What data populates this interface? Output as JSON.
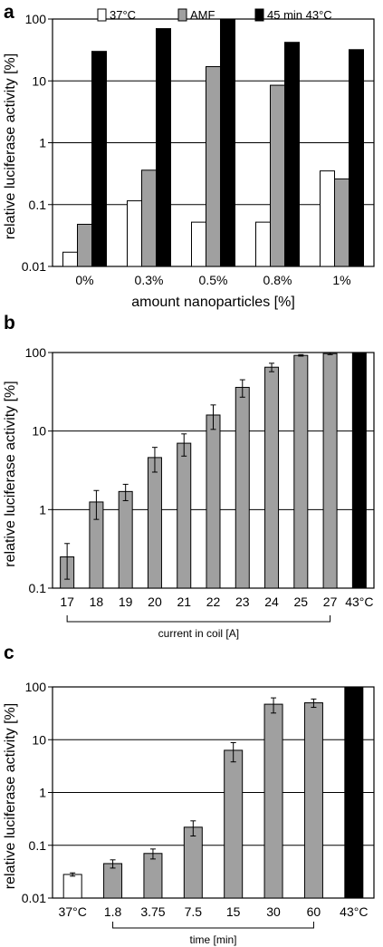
{
  "chart_data": [
    {
      "panel": "a",
      "type": "bar",
      "categories": [
        "0%",
        "0.3%",
        "0.5%",
        "0.8%",
        "1%"
      ],
      "series": [
        {
          "name": "37°C",
          "color": "#ffffff",
          "values": [
            0.017,
            0.115,
            0.052,
            0.052,
            0.35
          ]
        },
        {
          "name": "AMF",
          "color": "#a0a0a0",
          "values": [
            0.048,
            0.36,
            17,
            8.5,
            0.26
          ]
        },
        {
          "name": "45 min 43°C",
          "color": "#000000",
          "values": [
            30,
            70,
            100,
            42,
            32
          ]
        }
      ],
      "ylabel": "relative luciferase activity [%]",
      "xlabel": "amount nanoparticles [%]",
      "yscale": "log",
      "ylim": [
        0.01,
        100
      ],
      "yticks": [
        "0.01",
        "0.1",
        "1",
        "10",
        "100"
      ],
      "legend_position": "top"
    },
    {
      "panel": "b",
      "type": "bar",
      "categories": [
        "17",
        "18",
        "19",
        "20",
        "21",
        "22",
        "23",
        "24",
        "25",
        "27",
        "43°C"
      ],
      "values": [
        0.25,
        1.25,
        1.7,
        4.6,
        7,
        16,
        36,
        65,
        92,
        97,
        100
      ],
      "errors": [
        0.12,
        0.5,
        0.4,
        1.6,
        2.2,
        5.5,
        9,
        8,
        2,
        3,
        0
      ],
      "colors": [
        "#a0a0a0",
        "#a0a0a0",
        "#a0a0a0",
        "#a0a0a0",
        "#a0a0a0",
        "#a0a0a0",
        "#a0a0a0",
        "#a0a0a0",
        "#a0a0a0",
        "#a0a0a0",
        "#000000"
      ],
      "ylabel": "relative luciferase activity [%]",
      "xlabel": "current in coil [A]",
      "yscale": "log",
      "ylim": [
        0.1,
        100
      ],
      "yticks": [
        "0.1",
        "1",
        "10",
        "100"
      ]
    },
    {
      "panel": "c",
      "type": "bar",
      "categories": [
        "37°C",
        "1.8",
        "3.75",
        "7.5",
        "15",
        "30",
        "60",
        "43°C"
      ],
      "values": [
        0.028,
        0.045,
        0.07,
        0.22,
        6.3,
        47,
        50,
        100
      ],
      "errors": [
        0.002,
        0.008,
        0.015,
        0.07,
        2.5,
        15,
        9,
        0
      ],
      "colors": [
        "#ffffff",
        "#a0a0a0",
        "#a0a0a0",
        "#a0a0a0",
        "#a0a0a0",
        "#a0a0a0",
        "#a0a0a0",
        "#000000"
      ],
      "ylabel": "relative luciferase activity [%]",
      "xlabel": "time [min]",
      "yscale": "log",
      "ylim": [
        0.01,
        100
      ],
      "yticks": [
        "0.01",
        "0.1",
        "1",
        "10",
        "100"
      ]
    }
  ]
}
